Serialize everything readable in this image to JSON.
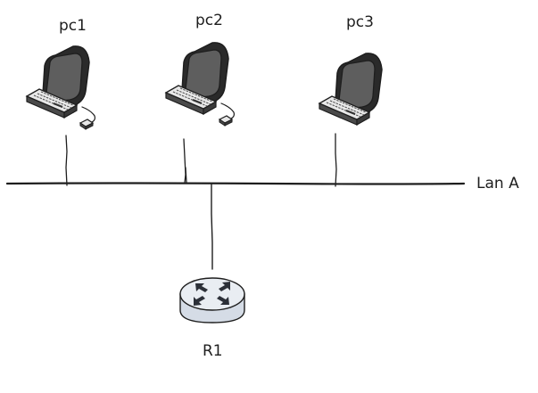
{
  "diagram": {
    "nodes": {
      "pc1": {
        "label": "pc1",
        "type": "computer-icon"
      },
      "pc2": {
        "label": "pc2",
        "type": "computer-icon"
      },
      "pc3": {
        "label": "pc3",
        "type": "computer-icon"
      },
      "r1": {
        "label": "R1",
        "type": "router-icon"
      }
    },
    "lan": {
      "label": "Lan A"
    },
    "colors": {
      "stroke": "#1e1e1e",
      "monitor_dark": "#2a2a2a",
      "monitor_screen": "#5e5e5e",
      "keyboard_top": "#e8e8e8",
      "keyboard_side": "#4a4a4a",
      "router_body": "#d5dce6",
      "router_top": "#e9edf2",
      "router_arrows": "#2c3038"
    }
  }
}
